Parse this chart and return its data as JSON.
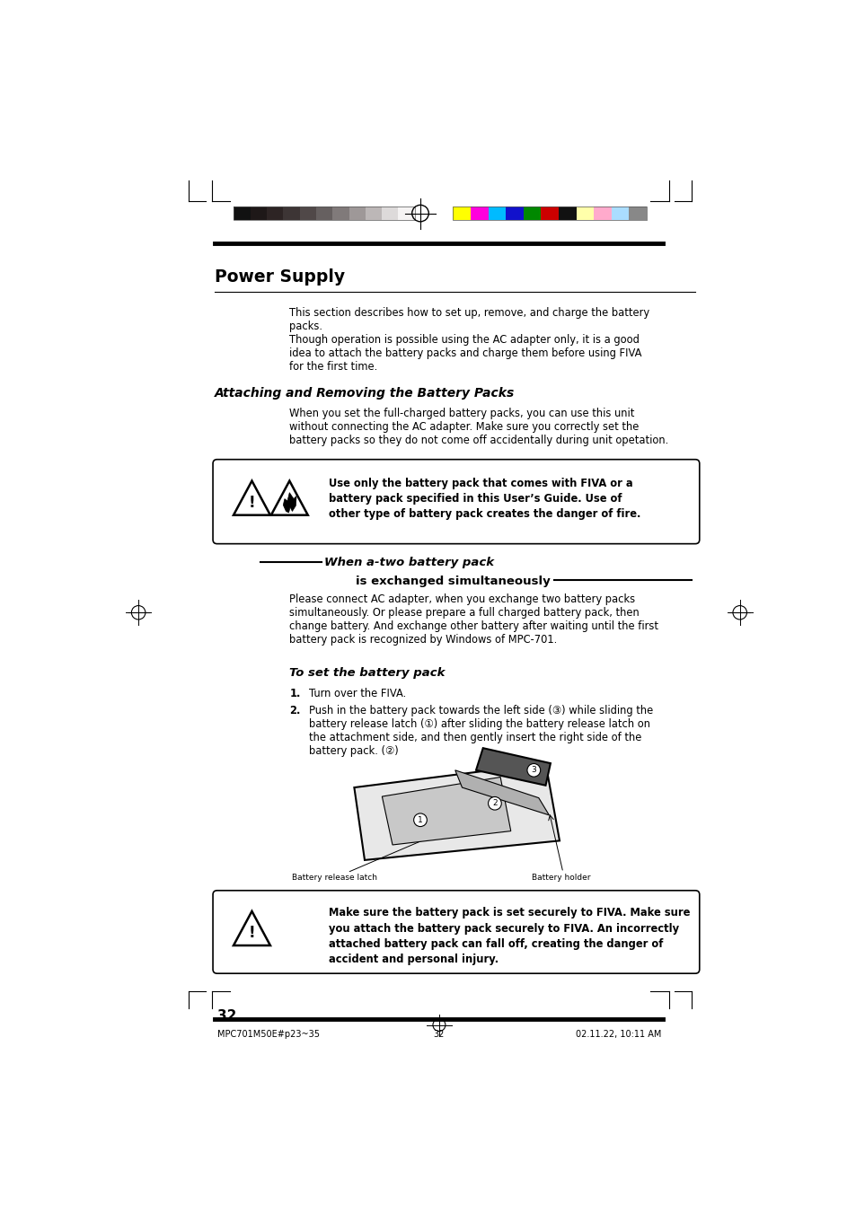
{
  "page_width": 9.54,
  "page_height": 13.51,
  "bg_color": "#ffffff",
  "title": "Power Supply",
  "para2_heading": "Attaching and Removing the Battery Packs",
  "warning_text_lines": [
    "Use only the battery pack that comes with FIVA or a",
    "battery pack specified in this User’s Guide. Use of",
    "other type of battery pack creates the danger of fire."
  ],
  "section2_title_italic": "When a-two battery pack",
  "section2_title_bold": "is exchanged simultaneously",
  "section2_para_lines": [
    "Please connect AC adapter, when you exchange two battery packs",
    "simultaneously. Or please prepare a full charged battery pack, then",
    "change battery. And exchange other battery after waiting until the first",
    "battery pack is recognized by Windows of MPC-701."
  ],
  "to_set_heading": "To set the battery pack",
  "step1": "Turn over the FIVA.",
  "step2_lines": [
    "Push in the battery pack towards the left side (③) while sliding the",
    "battery release latch (①) after sliding the battery release latch on",
    "the attachment side, and then gently insert the right side of the",
    "battery pack. (②)"
  ],
  "warning2_text_lines": [
    "Make sure the battery pack is set securely to FIVA. Make sure",
    "you attach the battery pack securely to FIVA. An incorrectly",
    "attached battery pack can fall off, creating the danger of",
    "accident and personal injury."
  ],
  "page_number": "32",
  "footer_left": "MPC701M50E#p23~35",
  "footer_center": "32",
  "footer_right": "02.11.22, 10:11 AM",
  "battery_label_left": "Battery release latch",
  "battery_label_right": "Battery holder",
  "color_bar_left": [
    "#111111",
    "#1e1818",
    "#2d2424",
    "#3d3535",
    "#504848",
    "#666060",
    "#807a7a",
    "#9e9898",
    "#bcb7b7",
    "#dddada",
    "#f5f3f3"
  ],
  "color_bar_right": [
    "#ffff00",
    "#ff00dd",
    "#00bbff",
    "#1111cc",
    "#008800",
    "#cc0000",
    "#111111",
    "#ffffaa",
    "#ffaacc",
    "#aaddff",
    "#888888"
  ]
}
